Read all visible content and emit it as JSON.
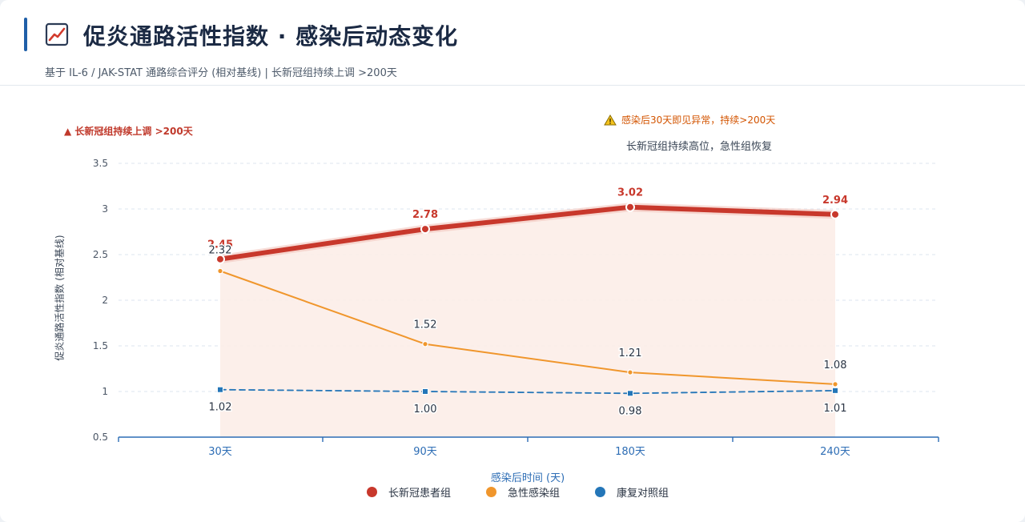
{
  "header": {
    "title_icon": "chart-line-up-icon",
    "title": "促炎通路活性指数 · 感染后动态变化",
    "subtitle": "基于 IL-6 / JAK-STAT 通路综合评分 (相对基线) | 长新冠组持续上调 >200天"
  },
  "annotations": {
    "left_note": "▲ 长新冠组持续上调 >200天",
    "right_note_icon": "warning-triangle-icon",
    "right_note_1": "感染后30天即见异常，持续>200天",
    "right_note_2": "长新冠组持续高位，急性组恢复"
  },
  "colors": {
    "long_covid": "#c8382c",
    "acute": "#f0962c",
    "recovered": "#2476b8",
    "area_fill": "#fbece6",
    "axis": "#2d6db5"
  },
  "chart_data": {
    "type": "line",
    "title": "促炎通路活性指数 · 感染后动态变化",
    "xlabel": "感染后时间 (天)",
    "ylabel": "促炎通路活性指数 (相对基线)",
    "categories": [
      "30天",
      "90天",
      "180天",
      "240天"
    ],
    "ylim": [
      0.5,
      3.5
    ],
    "yticks": [
      0.5,
      1,
      1.5,
      2,
      2.5,
      3,
      3.5
    ],
    "ytick_labels": [
      "0.5",
      "1",
      "1.5",
      "2",
      "2.5",
      "3",
      "3.5"
    ],
    "grid": true,
    "legend_position": "bottom",
    "series": [
      {
        "name": "长新冠患者组",
        "values": [
          2.45,
          2.78,
          3.02,
          2.94
        ],
        "labels": [
          "2.45",
          "2.78",
          "3.02",
          "2.94"
        ],
        "style": "solid-thick",
        "area": true
      },
      {
        "name": "急性感染组",
        "values": [
          2.32,
          1.52,
          1.21,
          1.08
        ],
        "labels": [
          "2.32",
          "1.52",
          "1.21",
          "1.08"
        ],
        "style": "solid"
      },
      {
        "name": "康复对照组",
        "values": [
          1.02,
          1.0,
          0.98,
          1.01
        ],
        "labels": [
          "1.02",
          "1.00",
          "0.98",
          "1.01"
        ],
        "style": "dashed"
      }
    ]
  }
}
